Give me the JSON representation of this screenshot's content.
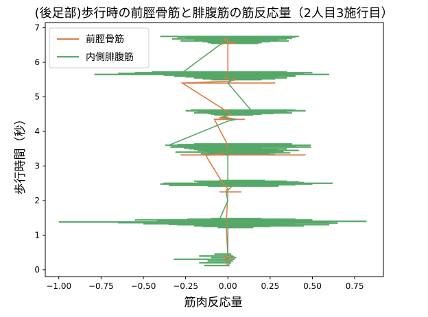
{
  "chart_data": {
    "type": "line",
    "title": "(後足部)歩行時の前脛骨筋と腓腹筋の筋反応量（2人目3施行目）",
    "xlabel": "筋肉反応量",
    "ylabel": "歩行時間（秒）",
    "xlim": [
      -1.08,
      0.92
    ],
    "ylim": [
      -0.2,
      7.15
    ],
    "xticks": [
      -1.0,
      -0.75,
      -0.5,
      -0.25,
      0.0,
      0.25,
      0.5,
      0.75
    ],
    "xtick_labels": [
      "−1.00",
      "−0.75",
      "−0.50",
      "−0.25",
      "0.00",
      "0.25",
      "0.50",
      "0.75"
    ],
    "yticks": [
      0,
      1,
      2,
      3,
      4,
      5,
      6,
      7
    ],
    "ytick_labels": [
      "0",
      "1",
      "2",
      "3",
      "4",
      "5",
      "6",
      "7"
    ],
    "grid": false,
    "legend_position": "top-left",
    "series": [
      {
        "name": "前脛骨筋",
        "color": "#e07b45",
        "points": [
          [
            0.0,
            0.1
          ],
          [
            -0.01,
            0.2
          ],
          [
            0.01,
            0.28
          ],
          [
            -0.02,
            0.35
          ],
          [
            0.0,
            0.4
          ],
          [
            -0.01,
            1.25
          ],
          [
            0.0,
            1.3
          ],
          [
            -0.01,
            1.35
          ],
          [
            0.0,
            2.2
          ],
          [
            -0.01,
            2.3
          ],
          [
            0.0,
            2.35
          ],
          [
            -0.01,
            2.4
          ],
          [
            -0.03,
            2.5
          ],
          [
            -0.13,
            3.3
          ],
          [
            -0.05,
            3.35
          ],
          [
            0.0,
            3.4
          ],
          [
            0.02,
            3.45
          ],
          [
            -0.01,
            3.5
          ],
          [
            0.0,
            3.6
          ],
          [
            -0.08,
            4.35
          ],
          [
            0.03,
            4.37
          ],
          [
            -0.05,
            4.4
          ],
          [
            0.0,
            4.45
          ],
          [
            0.02,
            4.5
          ],
          [
            -0.27,
            5.4
          ],
          [
            0.0,
            5.45
          ],
          [
            0.05,
            5.5
          ],
          [
            -0.02,
            5.55
          ],
          [
            0.0,
            5.6
          ],
          [
            0.0,
            6.5
          ],
          [
            0.01,
            6.6
          ],
          [
            -0.02,
            6.65
          ],
          [
            0.0,
            6.7
          ]
        ]
      },
      {
        "name": "内側腓腹筋",
        "color": "#55a868",
        "points": [
          [
            0.0,
            0.1
          ],
          [
            0.01,
            0.2
          ],
          [
            -0.02,
            0.3
          ],
          [
            0.03,
            0.38
          ],
          [
            0.0,
            0.42
          ],
          [
            0.0,
            1.2
          ],
          [
            -0.05,
            1.28
          ],
          [
            0.05,
            1.32
          ],
          [
            -0.02,
            1.38
          ],
          [
            0.0,
            1.4
          ],
          [
            -0.05,
            1.45
          ],
          [
            0.0,
            2.0
          ],
          [
            -0.01,
            2.2
          ],
          [
            0.0,
            2.3
          ],
          [
            0.02,
            2.4
          ],
          [
            0.0,
            2.45
          ],
          [
            0.12,
            2.5
          ],
          [
            -0.02,
            2.55
          ],
          [
            0.0,
            2.6
          ],
          [
            0.0,
            3.3
          ],
          [
            -0.03,
            3.35
          ],
          [
            0.02,
            3.42
          ],
          [
            0.0,
            3.5
          ],
          [
            -0.35,
            3.6
          ],
          [
            0.0,
            4.3
          ],
          [
            0.05,
            4.35
          ],
          [
            -0.03,
            4.42
          ],
          [
            0.0,
            4.5
          ],
          [
            0.14,
            4.6
          ],
          [
            0.0,
            5.4
          ],
          [
            0.03,
            5.5
          ],
          [
            -0.02,
            5.6
          ],
          [
            0.0,
            5.65
          ],
          [
            -0.27,
            5.7
          ],
          [
            -0.05,
            6.5
          ],
          [
            0.0,
            6.6
          ],
          [
            0.02,
            6.65
          ],
          [
            0.0,
            6.72
          ]
        ],
        "spikes": [
          [
            0.17,
            0.02,
            0.2
          ],
          [
            0.12,
            0.03,
            0.25
          ],
          [
            0.32,
            0.04,
            0.3
          ],
          [
            0.1,
            0.05,
            0.35
          ],
          [
            0.17,
            0.03,
            0.4
          ],
          [
            0.08,
            0.02,
            0.45
          ],
          [
            0.14,
            0.01,
            0.12
          ],
          [
            0.35,
            0.82,
            1.4
          ],
          [
            1.0,
            0.6,
            1.38
          ],
          [
            0.42,
            0.35,
            1.42
          ],
          [
            0.65,
            0.25,
            1.36
          ],
          [
            0.55,
            0.5,
            1.44
          ],
          [
            0.3,
            0.6,
            1.3
          ],
          [
            0.5,
            0.3,
            1.33
          ],
          [
            0.12,
            0.65,
            1.35
          ],
          [
            0.2,
            0.45,
            1.27
          ],
          [
            0.24,
            0.4,
            1.46
          ],
          [
            0.15,
            0.25,
            1.25
          ],
          [
            0.35,
            0.4,
            1.31
          ],
          [
            0.06,
            0.15,
            1.22
          ],
          [
            0.1,
            0.2,
            1.48
          ],
          [
            0.38,
            0.62,
            2.5
          ],
          [
            0.4,
            0.5,
            2.48
          ],
          [
            0.15,
            0.45,
            2.52
          ],
          [
            0.25,
            0.4,
            2.46
          ],
          [
            0.18,
            0.42,
            2.54
          ],
          [
            0.35,
            0.3,
            2.44
          ],
          [
            0.2,
            0.35,
            2.56
          ],
          [
            0.12,
            0.3,
            2.42
          ],
          [
            0.05,
            0.22,
            2.58
          ],
          [
            0.37,
            0.49,
            3.6
          ],
          [
            0.25,
            0.4,
            3.58
          ],
          [
            0.3,
            0.35,
            3.62
          ],
          [
            0.22,
            0.4,
            3.56
          ],
          [
            0.2,
            0.38,
            3.64
          ],
          [
            0.34,
            0.49,
            3.55
          ],
          [
            0.23,
            0.35,
            3.5
          ],
          [
            0.18,
            0.42,
            3.45
          ],
          [
            0.31,
            0.3,
            3.4
          ],
          [
            0.12,
            0.37,
            3.38
          ],
          [
            0.2,
            0.3,
            3.48
          ],
          [
            0.16,
            0.25,
            3.35
          ],
          [
            0.26,
            0.2,
            3.52
          ],
          [
            0.14,
            0.33,
            3.42
          ],
          [
            0.1,
            0.28,
            3.33
          ],
          [
            0.25,
            0.46,
            4.6
          ],
          [
            0.18,
            0.35,
            4.58
          ],
          [
            0.22,
            0.4,
            4.62
          ],
          [
            0.14,
            0.3,
            4.56
          ],
          [
            0.2,
            0.38,
            4.54
          ],
          [
            0.12,
            0.27,
            4.52
          ],
          [
            0.1,
            0.2,
            4.5
          ],
          [
            0.08,
            0.15,
            4.48
          ],
          [
            0.79,
            0.6,
            5.65
          ],
          [
            0.65,
            0.45,
            5.68
          ],
          [
            0.55,
            0.5,
            5.7
          ],
          [
            0.38,
            0.4,
            5.63
          ],
          [
            0.45,
            0.35,
            5.72
          ],
          [
            0.32,
            0.4,
            5.6
          ],
          [
            0.25,
            0.3,
            5.58
          ],
          [
            0.2,
            0.35,
            5.55
          ],
          [
            0.15,
            0.28,
            5.52
          ],
          [
            0.1,
            0.2,
            5.5
          ],
          [
            0.4,
            0.42,
            6.75
          ],
          [
            0.3,
            0.4,
            6.73
          ],
          [
            0.25,
            0.38,
            6.7
          ],
          [
            0.33,
            0.35,
            6.68
          ],
          [
            0.2,
            0.3,
            6.65
          ],
          [
            0.28,
            0.36,
            6.62
          ],
          [
            0.15,
            0.25,
            6.6
          ],
          [
            0.12,
            0.2,
            6.57
          ],
          [
            0.1,
            0.18,
            6.55
          ]
        ]
      }
    ]
  }
}
